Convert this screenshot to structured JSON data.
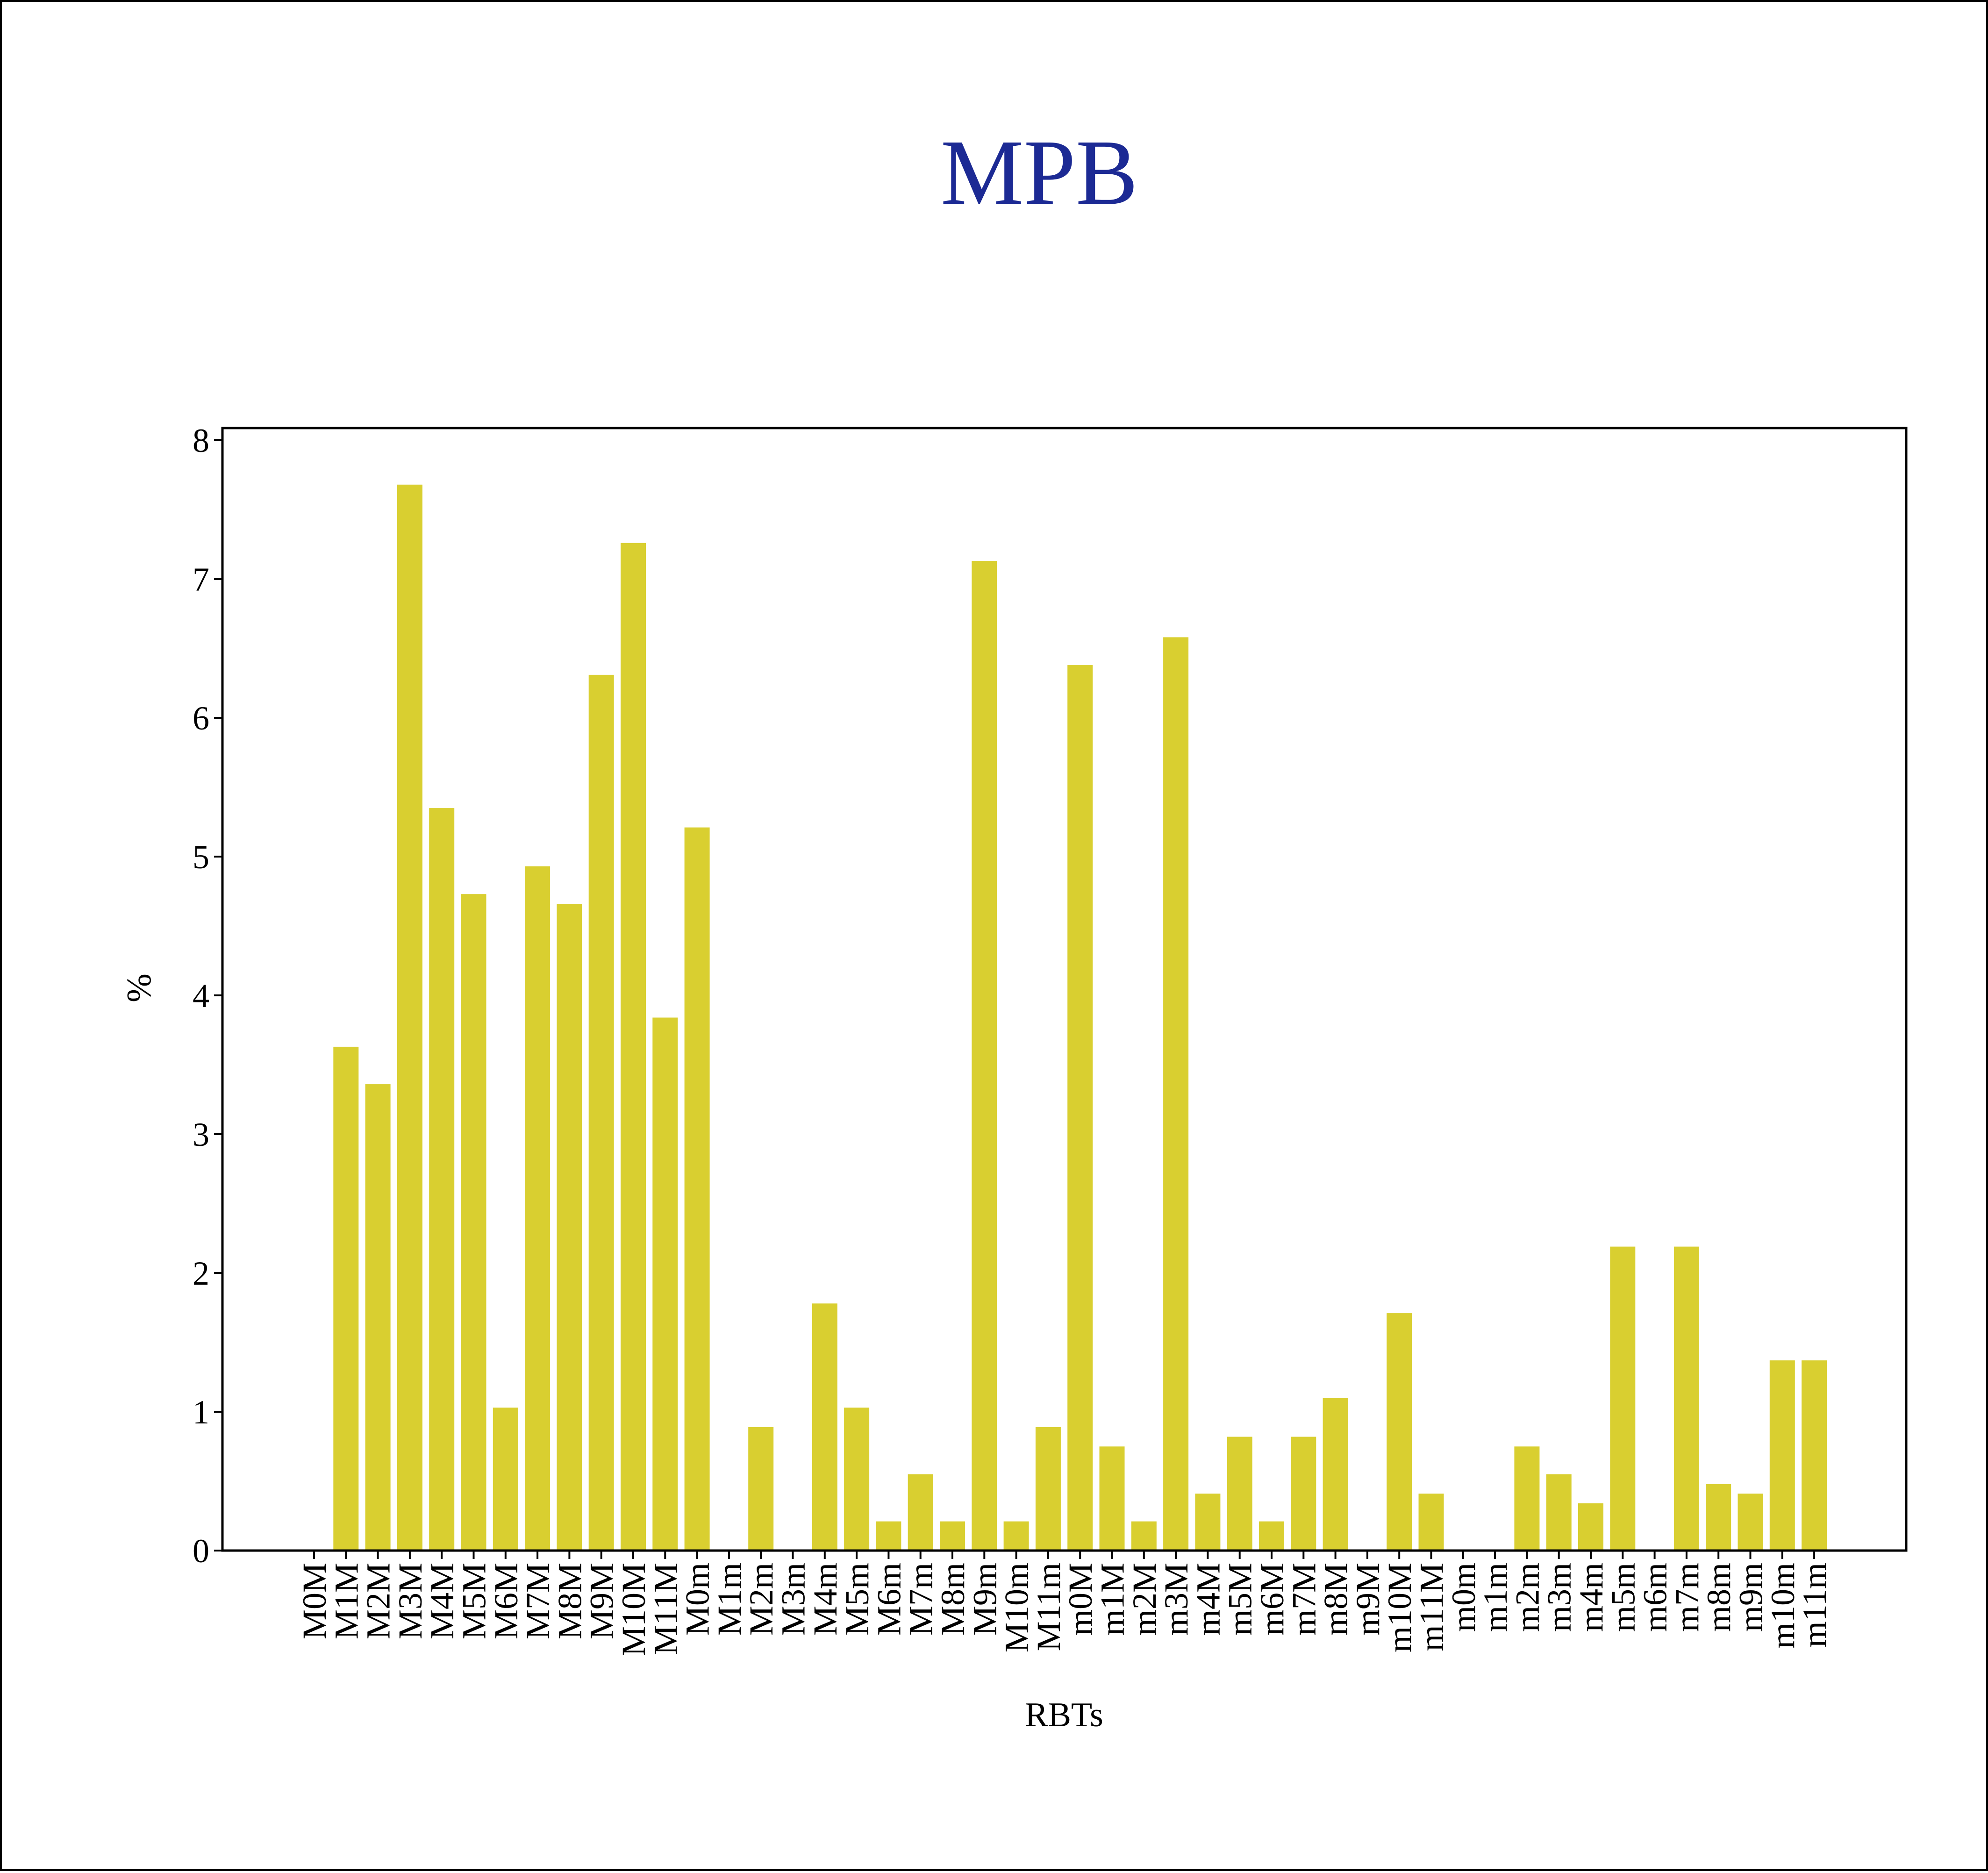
{
  "chart_data": {
    "type": "bar",
    "title": "MPB",
    "xlabel": "RBTs",
    "ylabel": "%",
    "ylim": [
      0,
      8
    ],
    "yticks": [
      0,
      1,
      2,
      3,
      4,
      5,
      6,
      7,
      8
    ],
    "grid": false,
    "legend": "none",
    "colors": {
      "bar": "#d9cf30",
      "title": "#1c2a94",
      "axis": "#000000"
    },
    "categories": [
      "M0M",
      "M1M",
      "M2M",
      "M3M",
      "M4M",
      "M5M",
      "M6M",
      "M7M",
      "M8M",
      "M9M",
      "M10M",
      "M11M",
      "M0m",
      "M1m",
      "M2m",
      "M3m",
      "M4m",
      "M5m",
      "M6m",
      "M7m",
      "M8m",
      "M9m",
      "M10m",
      "M11m",
      "m0M",
      "m1M",
      "m2M",
      "m3M",
      "m4M",
      "m5M",
      "m6M",
      "m7M",
      "m8M",
      "m9M",
      "m10M",
      "m11M",
      "m0m",
      "m1m",
      "m2m",
      "m3m",
      "m4m",
      "m5m",
      "m6m",
      "m7m",
      "m8m",
      "m9m",
      "m10m",
      "m11m"
    ],
    "values": [
      0,
      3.63,
      3.36,
      7.68,
      5.35,
      4.73,
      1.03,
      4.93,
      4.66,
      6.31,
      7.26,
      3.84,
      5.21,
      0,
      0.89,
      0,
      1.78,
      1.03,
      0.21,
      0.55,
      0.21,
      7.13,
      0.21,
      0.89,
      6.38,
      0.75,
      0.21,
      6.58,
      0.41,
      0.82,
      0.21,
      0.82,
      1.1,
      0,
      1.71,
      0.41,
      0,
      0,
      0.75,
      0.55,
      0.34,
      2.19,
      0,
      2.19,
      0.48,
      0.41,
      1.37,
      1.37
    ]
  }
}
